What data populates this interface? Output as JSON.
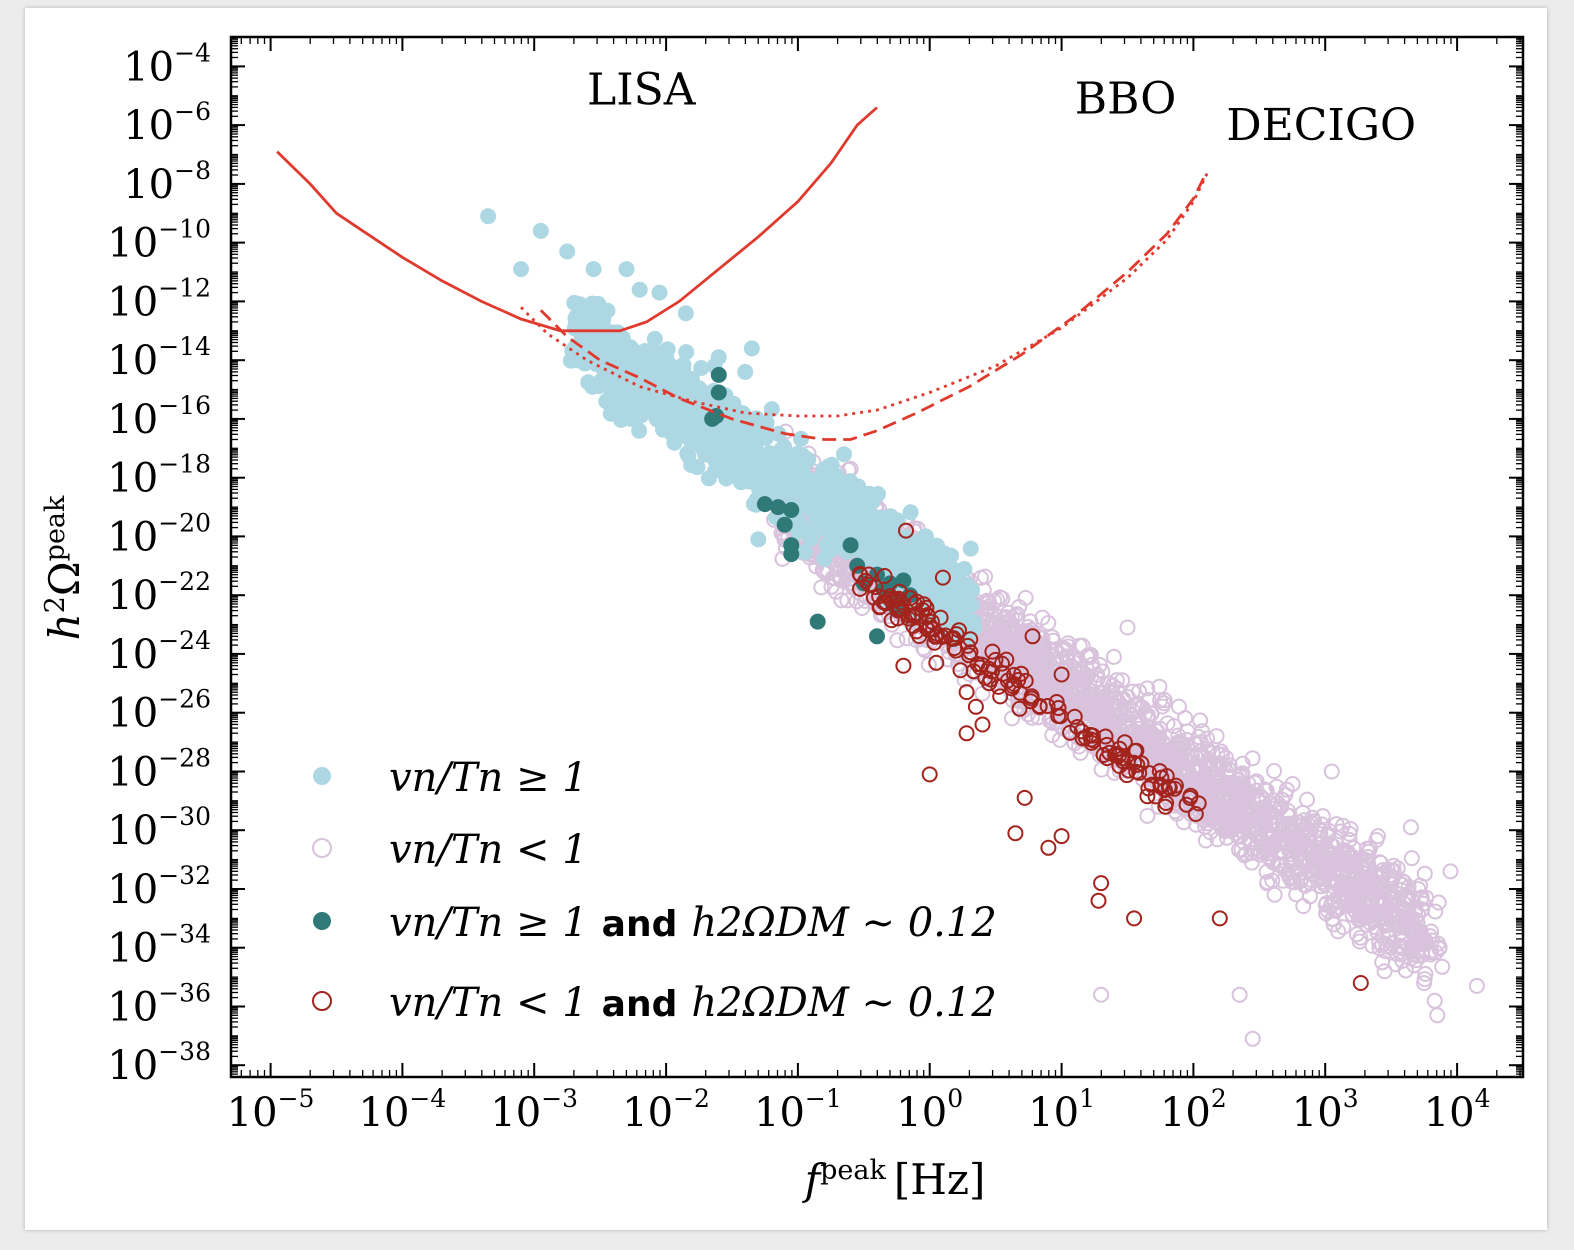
{
  "chart_data": {
    "type": "scatter",
    "title": "",
    "xlabel": {
      "symbol": "f",
      "sup": "peak",
      "unit": "[Hz]"
    },
    "ylabel": {
      "symbol": "h",
      "sup2": "2",
      "omega": "Ω",
      "sup": "peak"
    },
    "x_scale": "log",
    "y_scale": "log",
    "xlim_log10": [
      -5.3,
      4.5
    ],
    "ylim_log10": [
      -38.4,
      -3
    ],
    "x_ticks_log10": [
      -5,
      -4,
      -3,
      -2,
      -1,
      0,
      1,
      2,
      3,
      4
    ],
    "y_ticks_log10": [
      -4,
      -6,
      -8,
      -10,
      -12,
      -14,
      -16,
      -18,
      -20,
      -22,
      -24,
      -26,
      -28,
      -30,
      -32,
      -34,
      -36,
      -38
    ],
    "colors": {
      "curve": "#e03a2e",
      "light_blue": "#add8e3",
      "light_purple": "#d8c2dc",
      "teal": "#2f7a78",
      "dark_red": "#a3231d"
    },
    "detectors": [
      {
        "name": "LISA",
        "style": "solid",
        "label_pos_log": [
          -2.6,
          -5.3
        ],
        "curve_log": [
          [
            -4.95,
            -6.9
          ],
          [
            -4.7,
            -8.0
          ],
          [
            -4.5,
            -9.0
          ],
          [
            -4.3,
            -9.6
          ],
          [
            -4.0,
            -10.5
          ],
          [
            -3.7,
            -11.3
          ],
          [
            -3.4,
            -12.0
          ],
          [
            -3.1,
            -12.6
          ],
          [
            -2.8,
            -13.0
          ],
          [
            -2.6,
            -13.0
          ],
          [
            -2.35,
            -13.0
          ],
          [
            -2.15,
            -12.7
          ],
          [
            -1.9,
            -12.0
          ],
          [
            -1.6,
            -10.9
          ],
          [
            -1.3,
            -9.8
          ],
          [
            -1.0,
            -8.6
          ],
          [
            -0.75,
            -7.3
          ],
          [
            -0.55,
            -6.0
          ],
          [
            -0.4,
            -5.4
          ]
        ]
      },
      {
        "name": "BBO",
        "style": "dashed",
        "label_pos_log": [
          1.1,
          -5.6
        ],
        "curve_log": [
          [
            -2.95,
            -12.3
          ],
          [
            -2.75,
            -13.2
          ],
          [
            -2.5,
            -14.0
          ],
          [
            -2.2,
            -14.6
          ],
          [
            -1.9,
            -15.3
          ],
          [
            -1.5,
            -16.0
          ],
          [
            -1.1,
            -16.5
          ],
          [
            -0.8,
            -16.7
          ],
          [
            -0.6,
            -16.7
          ],
          [
            -0.4,
            -16.4
          ],
          [
            -0.1,
            -15.8
          ],
          [
            0.3,
            -14.9
          ],
          [
            0.7,
            -13.8
          ],
          [
            1.1,
            -12.5
          ],
          [
            1.5,
            -11.0
          ],
          [
            1.8,
            -9.7
          ],
          [
            2.0,
            -8.5
          ],
          [
            2.1,
            -7.6
          ]
        ]
      },
      {
        "name": "DECIGO",
        "style": "dotted",
        "label_pos_log": [
          2.25,
          -6.5
        ],
        "curve_log": [
          [
            -3.1,
            -12.2
          ],
          [
            -2.9,
            -13.1
          ],
          [
            -2.6,
            -14.0
          ],
          [
            -2.2,
            -14.9
          ],
          [
            -1.8,
            -15.4
          ],
          [
            -1.4,
            -15.8
          ],
          [
            -1.0,
            -15.9
          ],
          [
            -0.7,
            -15.9
          ],
          [
            -0.4,
            -15.7
          ],
          [
            0.0,
            -15.1
          ],
          [
            0.5,
            -14.2
          ],
          [
            1.0,
            -12.9
          ],
          [
            1.5,
            -11.2
          ],
          [
            1.8,
            -9.9
          ],
          [
            2.0,
            -8.6
          ],
          [
            2.12,
            -7.5
          ]
        ]
      }
    ],
    "series": [
      {
        "name": "vn_Tn_ge_1",
        "marker": "filled",
        "color_key": "light_blue",
        "count": 950,
        "points_log": [
          [
            -3.35,
            -9.1
          ],
          [
            -2.95,
            -9.6
          ],
          [
            -2.75,
            -10.3
          ],
          [
            -3.1,
            -10.9
          ],
          [
            -2.55,
            -10.9
          ],
          [
            -2.3,
            -10.9
          ],
          [
            -2.2,
            -11.6
          ],
          [
            -2.05,
            -11.7
          ],
          [
            -1.85,
            -12.4
          ],
          [
            -1.6,
            -13.9
          ],
          [
            -1.35,
            -13.6
          ],
          [
            -1.4,
            -14.4
          ],
          [
            -1.55,
            -15.2
          ],
          [
            -1.3,
            -20.1
          ],
          [
            -0.65,
            -17.2
          ],
          [
            -0.75,
            -18.1
          ]
        ],
        "cloud": {
          "x_start": -2.6,
          "x_end": 0.3,
          "y_at_start": -13.4,
          "slope": -3.05,
          "spread": 1.3
        }
      },
      {
        "name": "vn_Tn_lt_1",
        "marker": "open",
        "color_key": "light_purple",
        "count": 2600,
        "points_log": [
          [
            -0.6,
            -17.7
          ],
          [
            -0.4,
            -19.4
          ],
          [
            -0.1,
            -20.8
          ],
          [
            2.4,
            -30.8
          ],
          [
            3.65,
            -29.9
          ],
          [
            3.95,
            -31.4
          ],
          [
            4.15,
            -35.3
          ],
          [
            3.05,
            -28.0
          ],
          [
            3.4,
            -30.2
          ],
          [
            3.85,
            -36.3
          ],
          [
            2.35,
            -35.6
          ],
          [
            2.45,
            -37.1
          ],
          [
            1.5,
            -23.1
          ],
          [
            1.3,
            -35.6
          ],
          [
            3.45,
            -34.8
          ],
          [
            3.75,
            -35.2
          ]
        ],
        "cloud": {
          "x_start": -1.1,
          "x_end": 3.8,
          "y_at_start": -18.7,
          "slope": -3.05,
          "spread": 1.5
        }
      },
      {
        "name": "vn_Tn_ge_1_DM",
        "marker": "filled",
        "color_key": "teal",
        "points_log": [
          [
            -1.6,
            -14.5
          ],
          [
            -1.6,
            -15.1
          ],
          [
            -1.65,
            -16.0
          ],
          [
            -1.62,
            -15.9
          ],
          [
            -1.25,
            -18.9
          ],
          [
            -1.15,
            -19.0
          ],
          [
            -1.05,
            -19.1
          ],
          [
            -1.1,
            -19.6
          ],
          [
            -1.05,
            -20.3
          ],
          [
            -1.05,
            -20.6
          ],
          [
            -0.6,
            -20.3
          ],
          [
            -0.55,
            -21.0
          ],
          [
            -0.5,
            -21.6
          ],
          [
            -0.4,
            -21.3
          ],
          [
            -0.35,
            -21.8
          ],
          [
            -0.3,
            -21.6
          ],
          [
            -0.25,
            -22.2
          ],
          [
            -0.2,
            -21.5
          ],
          [
            -0.15,
            -22.0
          ],
          [
            -0.85,
            -22.9
          ],
          [
            -0.4,
            -23.4
          ],
          [
            -0.25,
            -22.5
          ]
        ]
      },
      {
        "name": "vn_Tn_lt_1_DM",
        "marker": "open",
        "color_key": "dark_red",
        "points_log": [
          [
            -0.18,
            -19.8
          ],
          [
            0.1,
            -21.4
          ],
          [
            0.78,
            -23.4
          ],
          [
            0.05,
            -24.3
          ],
          [
            -0.2,
            -24.4
          ],
          [
            1.0,
            -24.7
          ],
          [
            0.0,
            -28.1
          ],
          [
            0.28,
            -26.7
          ],
          [
            1.3,
            -31.8
          ],
          [
            1.28,
            -32.4
          ],
          [
            1.55,
            -33.0
          ],
          [
            2.2,
            -33.0
          ],
          [
            1.0,
            -30.2
          ],
          [
            0.72,
            -28.9
          ],
          [
            0.65,
            -30.1
          ],
          [
            0.9,
            -30.6
          ],
          [
            3.27,
            -35.2
          ],
          [
            0.28,
            -25.3
          ],
          [
            0.35,
            -25.8
          ],
          [
            0.4,
            -26.4
          ]
        ],
        "trend": {
          "x_start": -0.45,
          "x_end": 1.95,
          "y_at_start": -21.7,
          "slope": -3.05,
          "spread": 0.6,
          "count": 160
        }
      }
    ],
    "legend": [
      {
        "marker": "filled",
        "color_key": "light_blue",
        "text": "vn/Tn ≥ 1",
        "suffix": ""
      },
      {
        "marker": "open",
        "color_key": "light_purple",
        "text": "vn/Tn < 1",
        "suffix": ""
      },
      {
        "marker": "filled",
        "color_key": "teal",
        "text": "vn/Tn ≥ 1",
        "and": "and",
        "suffix": "h2ΩDM ∼ 0.12"
      },
      {
        "marker": "open",
        "color_key": "dark_red",
        "text": "vn/Tn < 1",
        "and": "and",
        "suffix": "h2ΩDM ∼ 0.12"
      }
    ],
    "legend_position": "bottom-left"
  }
}
